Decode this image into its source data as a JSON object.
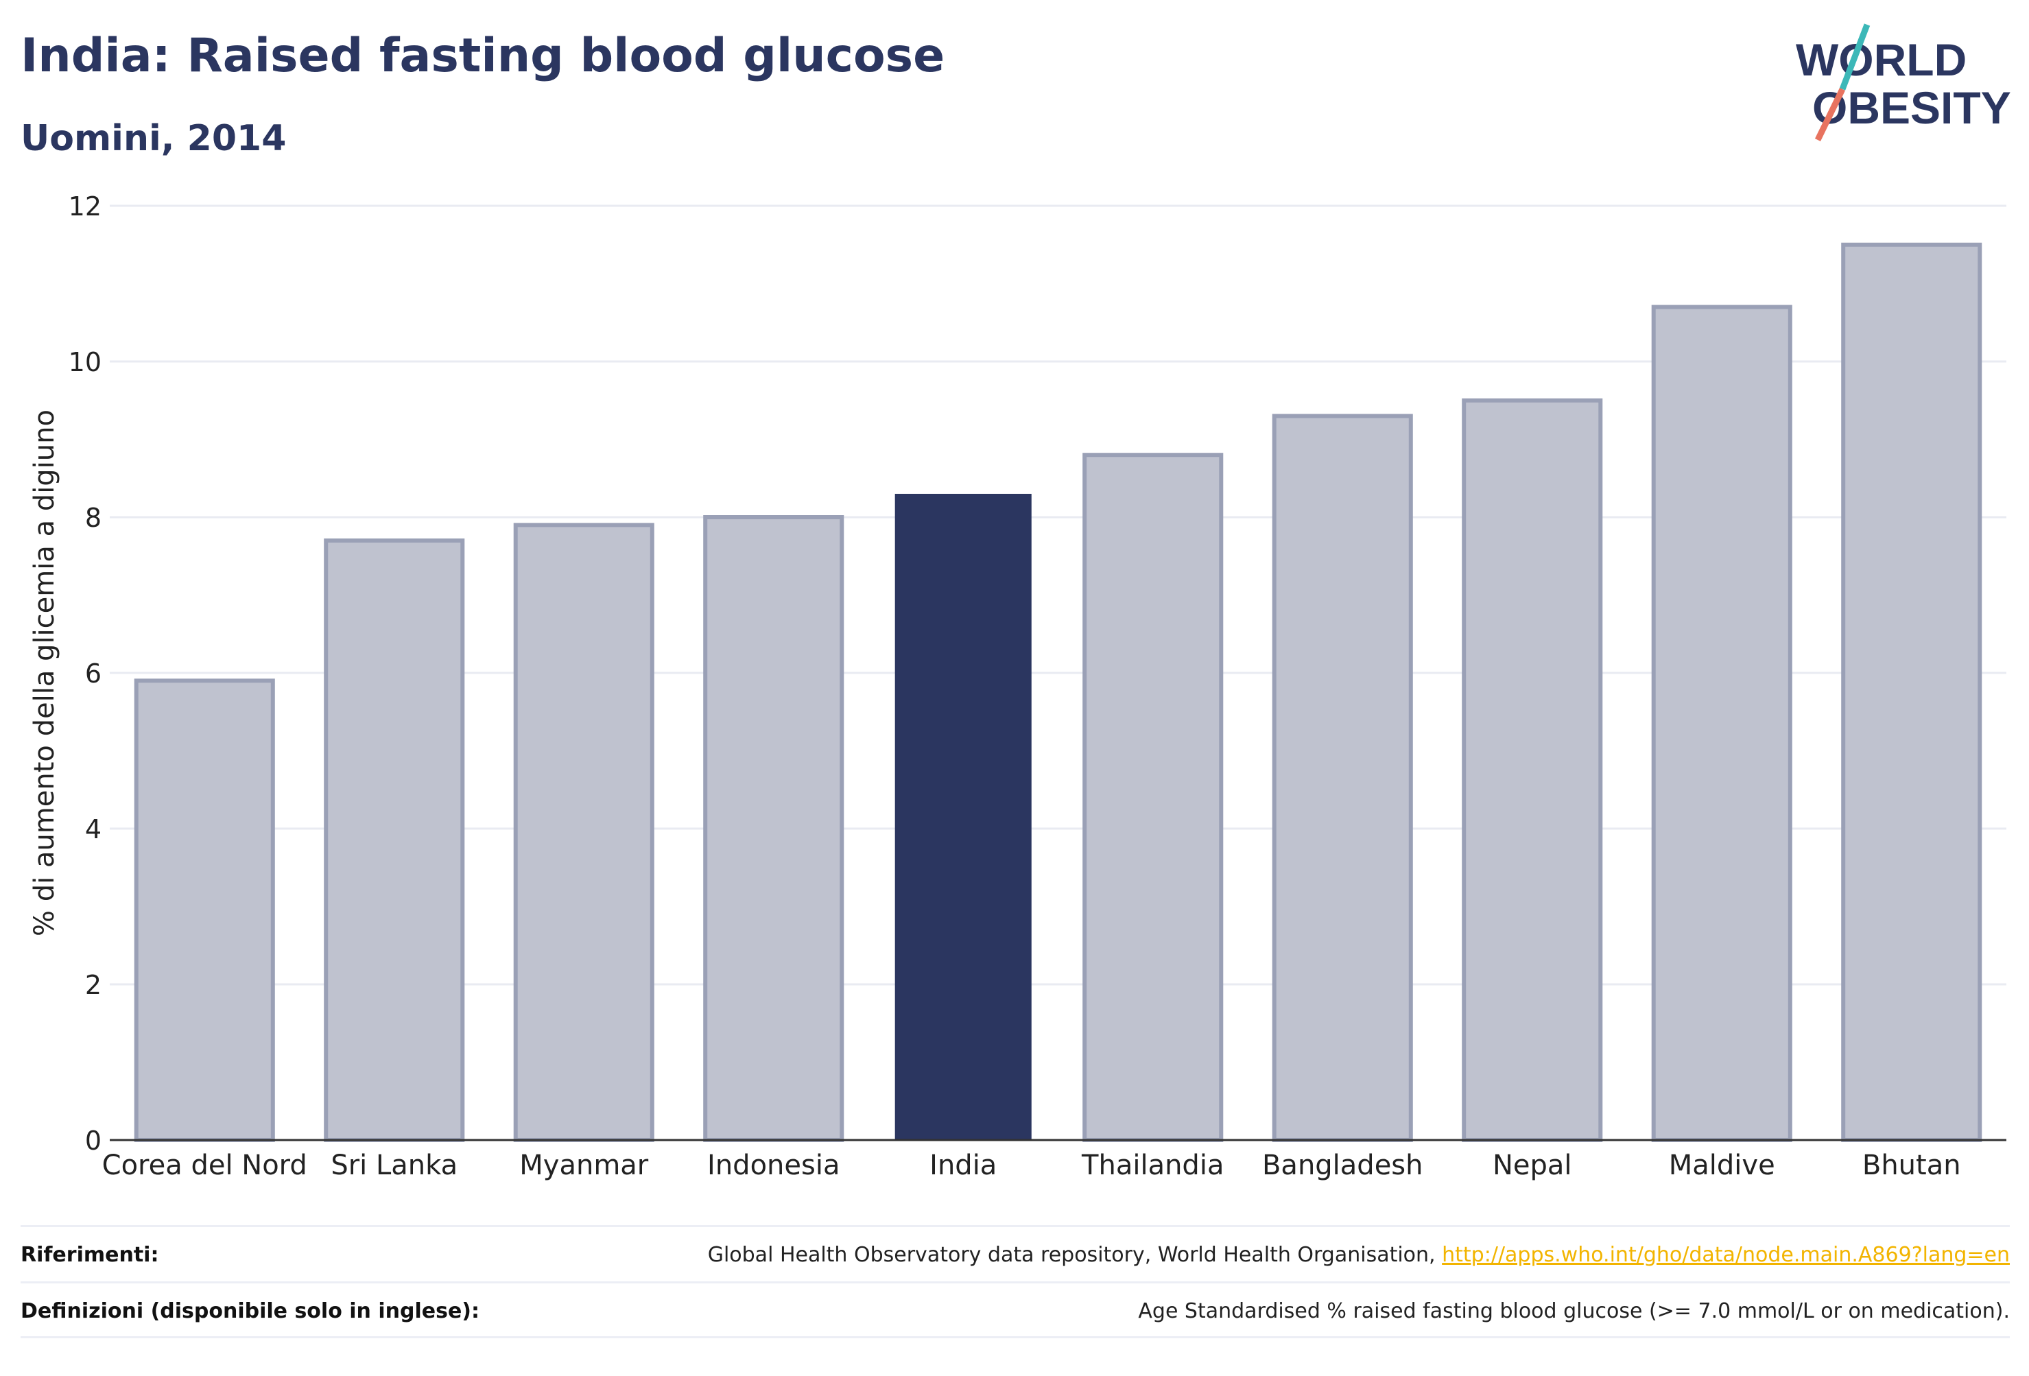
{
  "header": {
    "title": "India: Raised fasting blood glucose",
    "subtitle": "Uomini, 2014"
  },
  "logo": {
    "line1": "WORLD",
    "line2": "OBESITY",
    "colors": {
      "text": "#2b3660",
      "slash_top": "#3cb8b8",
      "slash_bottom": "#e8735f"
    }
  },
  "chart_data": {
    "type": "bar",
    "ylabel": "% di aumento della glicemia a digiuno",
    "xlabel": "",
    "ylim": [
      0,
      12
    ],
    "yticks": [
      0,
      2,
      4,
      6,
      8,
      10,
      12
    ],
    "grid": true,
    "categories": [
      "Corea del Nord",
      "Sri Lanka",
      "Myanmar",
      "Indonesia",
      "India",
      "Thailandia",
      "Bangladesh",
      "Nepal",
      "Maldive",
      "Bhutan"
    ],
    "values": [
      5.9,
      7.7,
      7.9,
      8.0,
      8.3,
      8.8,
      9.3,
      9.5,
      10.7,
      11.5
    ],
    "highlight": "India",
    "colors": {
      "bar": "#bfc2cf",
      "bar_border": "#9aa0b6",
      "highlight": "#2b3660",
      "grid": "#e9ebf2",
      "axis": "#333333"
    }
  },
  "footer": {
    "references_label": "Riferimenti:",
    "references_text": "Global Health Observatory data repository, World Health Organisation,",
    "references_link": "http://apps.who.int/gho/data/node.main.A869?lang=en",
    "definitions_label": "Definizioni (disponibile solo in inglese):",
    "definitions_text": "Age Standardised % raised fasting blood glucose (>= 7.0 mmol/L or on medication)."
  }
}
